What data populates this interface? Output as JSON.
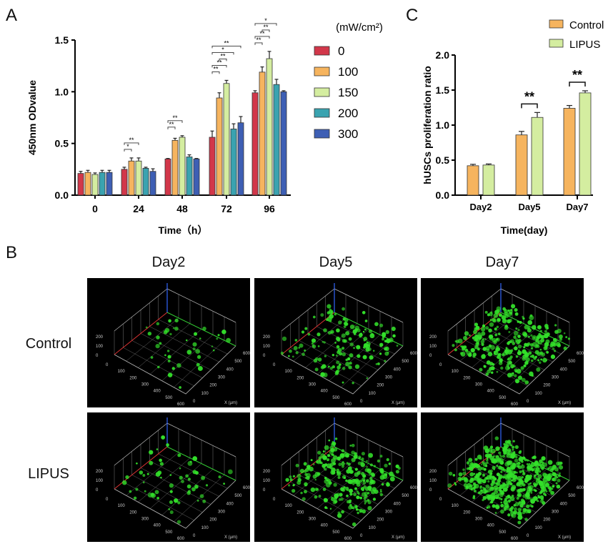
{
  "panels": {
    "a": "A",
    "b": "B",
    "c": "C"
  },
  "chart_data": [
    {
      "type": "bar",
      "panel": "A",
      "xlabel": "Time（h）",
      "ylabel": "450nm ODvalue",
      "categories": [
        "0",
        "24",
        "48",
        "72",
        "96"
      ],
      "ylim": [
        0,
        1.5
      ],
      "yticks": [
        "0.0",
        "0.5",
        "1.0",
        "1.5"
      ],
      "yticks_values": [
        0,
        0.5,
        1.0,
        1.5
      ],
      "legend_title": "(mW/cm²)",
      "legend_placement": "right",
      "series": [
        {
          "name": "0",
          "color": "#d2374a",
          "values": [
            0.21,
            0.25,
            0.35,
            0.56,
            0.99
          ],
          "errors": [
            0.02,
            0.02,
            0.005,
            0.06,
            0.02
          ]
        },
        {
          "name": "100",
          "color": "#f6b45e",
          "values": [
            0.22,
            0.33,
            0.53,
            0.94,
            1.19
          ],
          "errors": [
            0.02,
            0.03,
            0.02,
            0.05,
            0.05
          ]
        },
        {
          "name": "150",
          "color": "#d4eda0",
          "values": [
            0.2,
            0.33,
            0.56,
            1.08,
            1.32
          ],
          "errors": [
            0.015,
            0.03,
            0.015,
            0.03,
            0.07
          ]
        },
        {
          "name": "200",
          "color": "#3aa3b0",
          "values": [
            0.22,
            0.26,
            0.37,
            0.64,
            1.07
          ],
          "errors": [
            0.02,
            0.01,
            0.02,
            0.05,
            0.05
          ]
        },
        {
          "name": "300",
          "color": "#3e5fb4",
          "values": [
            0.22,
            0.23,
            0.35,
            0.7,
            1.0
          ],
          "errors": [
            0.02,
            0.025,
            0.005,
            0.06,
            0.01
          ]
        }
      ],
      "significance": [
        {
          "group": 1,
          "from": 0,
          "to": 1,
          "label": "*",
          "level": 0
        },
        {
          "group": 1,
          "from": 0,
          "to": 2,
          "label": "**",
          "level": 1
        },
        {
          "group": 2,
          "from": 0,
          "to": 1,
          "label": "**",
          "level": 0
        },
        {
          "group": 2,
          "from": 0,
          "to": 2,
          "label": "**",
          "level": 1
        },
        {
          "group": 3,
          "from": 0,
          "to": 1,
          "label": "**",
          "level": 0
        },
        {
          "group": 3,
          "from": 0,
          "to": 2,
          "label": "**",
          "level": 1
        },
        {
          "group": 3,
          "from": 1,
          "to": 2,
          "label": "**",
          "level": 2
        },
        {
          "group": 3,
          "from": 0,
          "to": 3,
          "label": "*",
          "level": 3
        },
        {
          "group": 3,
          "from": 0,
          "to": 4,
          "label": "**",
          "level": 4
        },
        {
          "group": 4,
          "from": 0,
          "to": 1,
          "label": "**",
          "level": 0
        },
        {
          "group": 4,
          "from": 0,
          "to": 2,
          "label": "**",
          "level": 1
        },
        {
          "group": 4,
          "from": 1,
          "to": 2,
          "label": "**",
          "level": 2
        },
        {
          "group": 4,
          "from": 0,
          "to": 3,
          "label": "*",
          "level": 3
        }
      ]
    },
    {
      "type": "bar",
      "panel": "C",
      "xlabel": "Time(day)",
      "ylabel": "hUSCs proliferation ratio",
      "categories": [
        "Day2",
        "Day5",
        "Day7"
      ],
      "ylim": [
        0,
        2.0
      ],
      "yticks": [
        "0.0",
        "0.5",
        "1.0",
        "1.5",
        "2.0"
      ],
      "yticks_values": [
        0,
        0.5,
        1.0,
        1.5,
        2.0
      ],
      "legend_placement": "top-right",
      "series": [
        {
          "name": "Control",
          "color": "#f6b45e",
          "values": [
            0.42,
            0.86,
            1.24
          ],
          "errors": [
            0.02,
            0.05,
            0.04
          ]
        },
        {
          "name": "LIPUS",
          "color": "#d4eda0",
          "values": [
            0.43,
            1.11,
            1.46
          ],
          "errors": [
            0.015,
            0.07,
            0.03
          ]
        }
      ],
      "significance": [
        {
          "group": 1,
          "label": "**"
        },
        {
          "group": 2,
          "label": "**"
        }
      ]
    }
  ],
  "panel_b": {
    "columns": [
      "Day2",
      "Day5",
      "Day7"
    ],
    "rows": [
      "Control",
      "LIPUS"
    ],
    "z_ticks": [
      "200",
      "100",
      "0"
    ],
    "y_ticks": [
      "0",
      "100",
      "200",
      "300",
      "400",
      "500",
      "600"
    ],
    "x_ticks": [
      "0",
      "100",
      "200",
      "300",
      "400",
      "500",
      "600"
    ],
    "x_axis_label": "X (µm)",
    "cell_density": [
      [
        40,
        150,
        300
      ],
      [
        60,
        260,
        520
      ]
    ],
    "cell_color": "#33e02a"
  }
}
